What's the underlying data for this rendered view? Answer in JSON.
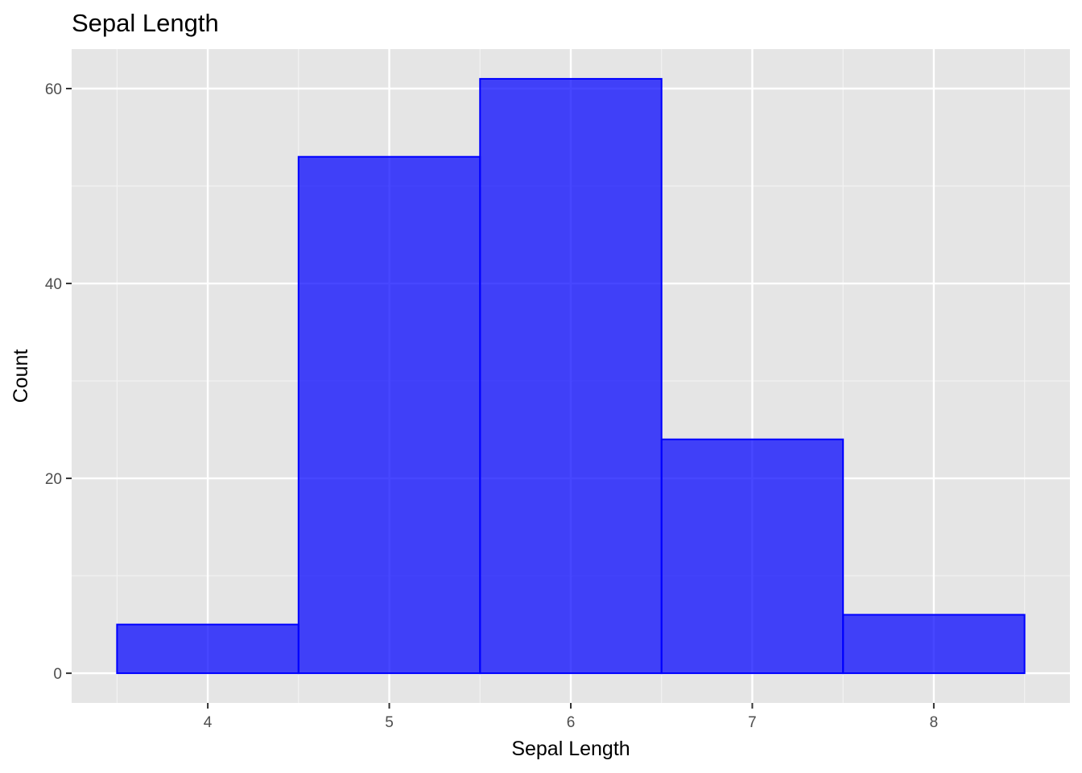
{
  "chart_data": {
    "type": "bar",
    "title": "Sepal Length",
    "xlabel": "Sepal Length",
    "ylabel": "Count",
    "bins": [
      {
        "x0": 3.5,
        "x1": 4.5,
        "count": 5
      },
      {
        "x0": 4.5,
        "x1": 5.5,
        "count": 53
      },
      {
        "x0": 5.5,
        "x1": 6.5,
        "count": 61
      },
      {
        "x0": 6.5,
        "x1": 7.5,
        "count": 24
      },
      {
        "x0": 7.5,
        "x1": 8.5,
        "count": 6
      }
    ],
    "xlim": [
      3.25,
      8.75
    ],
    "ylim": [
      -3.05,
      64.05
    ],
    "x_ticks": [
      "4",
      "5",
      "6",
      "7",
      "8"
    ],
    "x_tick_values": [
      4,
      5,
      6,
      7,
      8
    ],
    "y_ticks": [
      "0",
      "20",
      "40",
      "60"
    ],
    "y_tick_values": [
      0,
      20,
      40,
      60
    ],
    "x_minor_grid": [
      3.5,
      4.5,
      5.5,
      6.5,
      7.5,
      8.5
    ],
    "y_minor_grid": [
      10,
      30,
      50
    ],
    "grid": true,
    "legend": "none",
    "colors": {
      "bar_fill": "#0000ff",
      "bar_fill_opacity": 0.72,
      "bar_outline": "#0000ff",
      "panel_background": "#e5e5e5",
      "grid_major": "#ffffff",
      "grid_minor": "#f2f2f2",
      "tick_mark": "#333333"
    }
  }
}
